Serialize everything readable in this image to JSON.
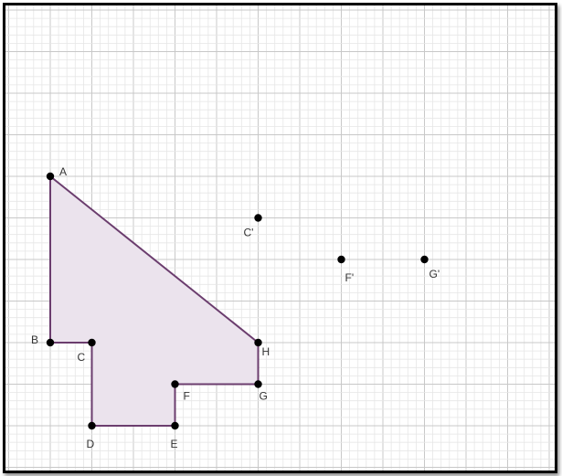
{
  "grid": {
    "minor_color": "#e6e6e6",
    "major_color": "#c8c8c8"
  },
  "polygon": {
    "fill": "#ebe3ed",
    "stroke": "#6b3d6e",
    "vertices": [
      "A",
      "B",
      "C",
      "D",
      "E",
      "F",
      "G",
      "H"
    ]
  },
  "points": [
    {
      "id": "A",
      "label": "A"
    },
    {
      "id": "B",
      "label": "B"
    },
    {
      "id": "C",
      "label": "C"
    },
    {
      "id": "D",
      "label": "D"
    },
    {
      "id": "E",
      "label": "E"
    },
    {
      "id": "F",
      "label": "F"
    },
    {
      "id": "G",
      "label": "G"
    },
    {
      "id": "H",
      "label": "H"
    },
    {
      "id": "Cp",
      "label": "C'"
    },
    {
      "id": "Fp",
      "label": "F'"
    },
    {
      "id": "Gp",
      "label": "G'"
    }
  ],
  "colors": {
    "point": "#000000",
    "label": "#333333"
  }
}
